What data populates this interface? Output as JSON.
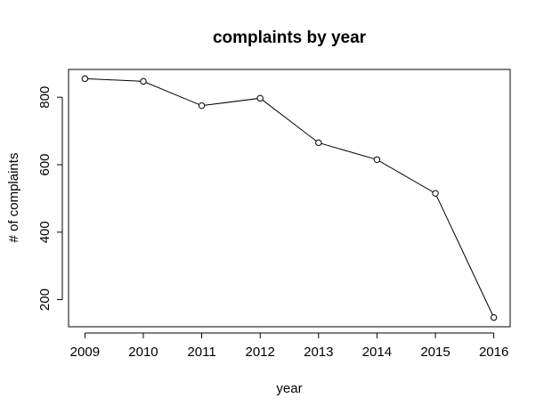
{
  "chart_data": {
    "type": "line",
    "title": "complaints by year",
    "xlabel": "year",
    "ylabel": "# of complaints",
    "x": [
      2009,
      2010,
      2011,
      2012,
      2013,
      2014,
      2015,
      2016
    ],
    "x_tick_labels": [
      "2009",
      "2010",
      "2011",
      "2012",
      "2013",
      "2014",
      "2015",
      "2016"
    ],
    "series": [
      {
        "values": [
          855,
          847,
          775,
          797,
          665,
          615,
          515,
          147
        ]
      }
    ],
    "y_ticks": [
      200,
      400,
      600,
      800
    ],
    "y_tick_labels": [
      "200",
      "400",
      "600",
      "800"
    ],
    "xlim": [
      2008.72,
      2016.28
    ],
    "ylim": [
      119.68,
      882.32
    ],
    "grid": false,
    "legend": "none",
    "marker": "open-circle",
    "line_color": "#000000"
  }
}
